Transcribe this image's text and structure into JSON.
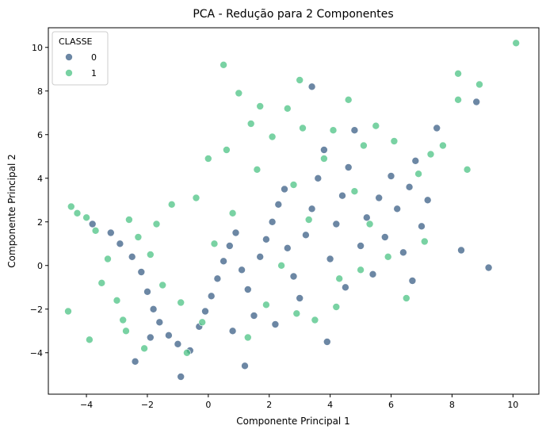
{
  "chart_data": {
    "type": "scatter",
    "title": "PCA - Redução para 2 Componentes",
    "xlabel": "Componente Principal 1",
    "ylabel": "Componente Principal 2",
    "xlim": [
      -5.25,
      10.85
    ],
    "ylim": [
      -5.9,
      10.9
    ],
    "xticks": [
      -4,
      -2,
      0,
      2,
      4,
      6,
      8,
      10
    ],
    "yticks": [
      -4,
      -2,
      0,
      2,
      4,
      6,
      8,
      10
    ],
    "grid": false,
    "legend": {
      "title": "CLASSE",
      "placement": "top-left"
    },
    "series": [
      {
        "name": "0",
        "color": "#3b5f86",
        "points": [
          [
            -3.8,
            1.9
          ],
          [
            -3.2,
            1.5
          ],
          [
            -2.9,
            1.0
          ],
          [
            -2.5,
            0.4
          ],
          [
            -2.2,
            -0.3
          ],
          [
            -2.0,
            -1.2
          ],
          [
            -1.8,
            -2.0
          ],
          [
            -1.6,
            -2.6
          ],
          [
            -1.3,
            -3.2
          ],
          [
            -1.0,
            -3.6
          ],
          [
            -0.9,
            -5.1
          ],
          [
            -0.6,
            -3.9
          ],
          [
            -0.3,
            -2.8
          ],
          [
            -0.1,
            -2.1
          ],
          [
            0.1,
            -1.4
          ],
          [
            0.3,
            -0.6
          ],
          [
            0.5,
            0.2
          ],
          [
            0.7,
            0.9
          ],
          [
            0.9,
            1.5
          ],
          [
            1.1,
            -0.2
          ],
          [
            1.3,
            -1.1
          ],
          [
            1.2,
            -4.6
          ],
          [
            1.5,
            -2.3
          ],
          [
            1.7,
            0.4
          ],
          [
            1.9,
            1.2
          ],
          [
            2.1,
            2.0
          ],
          [
            2.3,
            2.8
          ],
          [
            2.5,
            3.5
          ],
          [
            2.6,
            0.8
          ],
          [
            2.8,
            -0.5
          ],
          [
            3.0,
            -1.5
          ],
          [
            3.2,
            1.4
          ],
          [
            3.4,
            2.6
          ],
          [
            3.4,
            8.2
          ],
          [
            3.6,
            4.0
          ],
          [
            3.8,
            5.3
          ],
          [
            3.9,
            -3.5
          ],
          [
            4.0,
            0.3
          ],
          [
            4.2,
            1.9
          ],
          [
            4.4,
            3.2
          ],
          [
            4.6,
            4.5
          ],
          [
            4.8,
            6.2
          ],
          [
            5.0,
            0.9
          ],
          [
            5.2,
            2.2
          ],
          [
            5.4,
            -0.4
          ],
          [
            5.6,
            3.1
          ],
          [
            5.8,
            1.3
          ],
          [
            6.0,
            4.1
          ],
          [
            6.2,
            2.6
          ],
          [
            6.4,
            0.6
          ],
          [
            6.6,
            3.6
          ],
          [
            6.8,
            4.8
          ],
          [
            7.0,
            1.8
          ],
          [
            7.2,
            3.0
          ],
          [
            7.5,
            6.3
          ],
          [
            6.7,
            -0.7
          ],
          [
            8.3,
            0.7
          ],
          [
            8.8,
            7.5
          ],
          [
            9.2,
            -0.1
          ],
          [
            -2.4,
            -4.4
          ],
          [
            -1.9,
            -3.3
          ],
          [
            0.8,
            -3.0
          ],
          [
            2.2,
            -2.7
          ],
          [
            4.5,
            -1.0
          ]
        ]
      },
      {
        "name": "1",
        "color": "#4cc384",
        "points": [
          [
            -4.6,
            -2.1
          ],
          [
            -4.5,
            2.7
          ],
          [
            -4.3,
            2.4
          ],
          [
            -4.0,
            2.2
          ],
          [
            -3.7,
            1.6
          ],
          [
            -3.5,
            -0.8
          ],
          [
            -3.3,
            0.3
          ],
          [
            -3.0,
            -1.6
          ],
          [
            -2.8,
            -2.5
          ],
          [
            -2.6,
            2.1
          ],
          [
            -2.3,
            1.3
          ],
          [
            -2.1,
            -3.8
          ],
          [
            -1.9,
            0.5
          ],
          [
            -1.7,
            1.9
          ],
          [
            -1.5,
            -0.9
          ],
          [
            -1.2,
            2.8
          ],
          [
            -0.9,
            -1.7
          ],
          [
            -0.7,
            -4.0
          ],
          [
            -0.4,
            3.1
          ],
          [
            0.0,
            4.9
          ],
          [
            0.2,
            1.0
          ],
          [
            0.5,
            9.2
          ],
          [
            0.6,
            5.3
          ],
          [
            0.8,
            2.4
          ],
          [
            1.0,
            7.9
          ],
          [
            1.4,
            6.5
          ],
          [
            1.6,
            4.4
          ],
          [
            1.7,
            7.3
          ],
          [
            1.9,
            -1.8
          ],
          [
            2.1,
            5.9
          ],
          [
            2.4,
            0.0
          ],
          [
            2.6,
            7.2
          ],
          [
            2.8,
            3.7
          ],
          [
            3.0,
            8.5
          ],
          [
            3.1,
            6.3
          ],
          [
            3.3,
            2.1
          ],
          [
            3.5,
            -2.5
          ],
          [
            3.8,
            4.9
          ],
          [
            4.1,
            6.2
          ],
          [
            4.3,
            -0.6
          ],
          [
            4.6,
            7.6
          ],
          [
            4.8,
            3.4
          ],
          [
            5.1,
            5.5
          ],
          [
            5.3,
            1.9
          ],
          [
            5.5,
            6.4
          ],
          [
            5.9,
            0.4
          ],
          [
            6.1,
            5.7
          ],
          [
            6.5,
            -1.5
          ],
          [
            6.9,
            4.2
          ],
          [
            7.1,
            1.1
          ],
          [
            7.3,
            5.1
          ],
          [
            7.7,
            5.5
          ],
          [
            8.2,
            7.6
          ],
          [
            8.2,
            8.8
          ],
          [
            8.5,
            4.4
          ],
          [
            8.9,
            8.3
          ],
          [
            10.1,
            10.2
          ],
          [
            -3.9,
            -3.4
          ],
          [
            -2.7,
            -3.0
          ],
          [
            -0.2,
            -2.6
          ],
          [
            1.3,
            -3.3
          ],
          [
            2.9,
            -2.2
          ],
          [
            4.2,
            -1.9
          ],
          [
            5.0,
            -0.2
          ]
        ]
      }
    ]
  }
}
